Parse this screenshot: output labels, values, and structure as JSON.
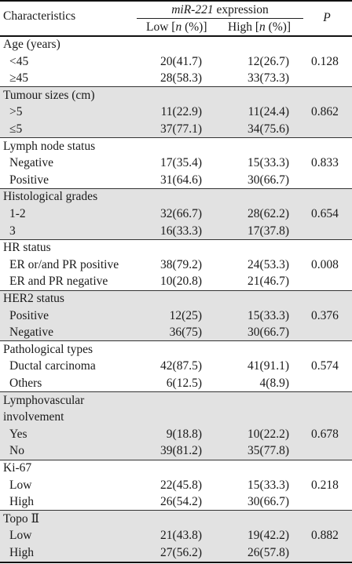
{
  "header": {
    "characteristics": "Characteristics",
    "mir_name": "miR-221",
    "mir_suffix": " expression",
    "low": "Low [n (%)]",
    "high": "High  [n (%)]",
    "p": "P"
  },
  "groups": [
    {
      "title": [
        "Age (years)"
      ],
      "p": "0.128",
      "rows": [
        {
          "label": "<45",
          "low": "20(41.7)",
          "high": "12(26.7)"
        },
        {
          "label": "≥45",
          "low": "28(58.3)",
          "high": "33(73.3)"
        }
      ]
    },
    {
      "title": [
        "Tumour sizes (cm)"
      ],
      "p": "0.862",
      "rows": [
        {
          "label": ">5",
          "low": "11(22.9)",
          "high": "11(24.4)"
        },
        {
          "label": "≤5",
          "low": "37(77.1)",
          "high": "34(75.6)"
        }
      ]
    },
    {
      "title": [
        "Lymph node status"
      ],
      "p": "0.833",
      "rows": [
        {
          "label": "Negative",
          "low": "17(35.4)",
          "high": "15(33.3)"
        },
        {
          "label": "Positive",
          "low": "31(64.6)",
          "high": "30(66.7)"
        }
      ]
    },
    {
      "title": [
        "Histological grades"
      ],
      "p": "0.654",
      "rows": [
        {
          "label": "1-2",
          "low": "32(66.7)",
          "high": "28(62.2)"
        },
        {
          "label": "3",
          "low": "16(33.3)",
          "high": "17(37.8)"
        }
      ]
    },
    {
      "title": [
        "HR status"
      ],
      "p": "0.008",
      "rows": [
        {
          "label": "ER or/and PR positive",
          "low": "38(79.2)",
          "high": "24(53.3)"
        },
        {
          "label": "ER and PR negative",
          "low": "10(20.8)",
          "high": "21(46.7)"
        }
      ]
    },
    {
      "title": [
        "HER2 status"
      ],
      "p": "0.376",
      "rows": [
        {
          "label": "Positive",
          "low": "12(25)",
          "high": "15(33.3)"
        },
        {
          "label": "Negative",
          "low": "36(75)",
          "high": "30(66.7)"
        }
      ]
    },
    {
      "title": [
        "Pathological types"
      ],
      "p": "0.574",
      "rows": [
        {
          "label": "Ductal carcinoma",
          "low": "42(87.5)",
          "high": "41(91.1)"
        },
        {
          "label": "Others",
          "low": "6(12.5)",
          "high": "4(8.9)"
        }
      ]
    },
    {
      "title": [
        "Lymphovascular",
        "involvement"
      ],
      "p": "0.678",
      "rows": [
        {
          "label": "Yes",
          "low": "9(18.8)",
          "high": "10(22.2)"
        },
        {
          "label": "No",
          "low": "39(81.2)",
          "high": "35(77.8)"
        }
      ]
    },
    {
      "title": [
        "Ki-67"
      ],
      "p": "0.218",
      "rows": [
        {
          "label": "Low",
          "low": "22(45.8)",
          "high": "15(33.3)"
        },
        {
          "label": "High",
          "low": "26(54.2)",
          "high": "30(66.7)"
        }
      ]
    },
    {
      "title": [
        "Topo Ⅱ"
      ],
      "p": "0.882",
      "rows": [
        {
          "label": "Low",
          "low": "21(43.8)",
          "high": "19(42.2)"
        },
        {
          "label": "High",
          "low": "27(56.2)",
          "high": "26(57.8)"
        }
      ]
    }
  ]
}
